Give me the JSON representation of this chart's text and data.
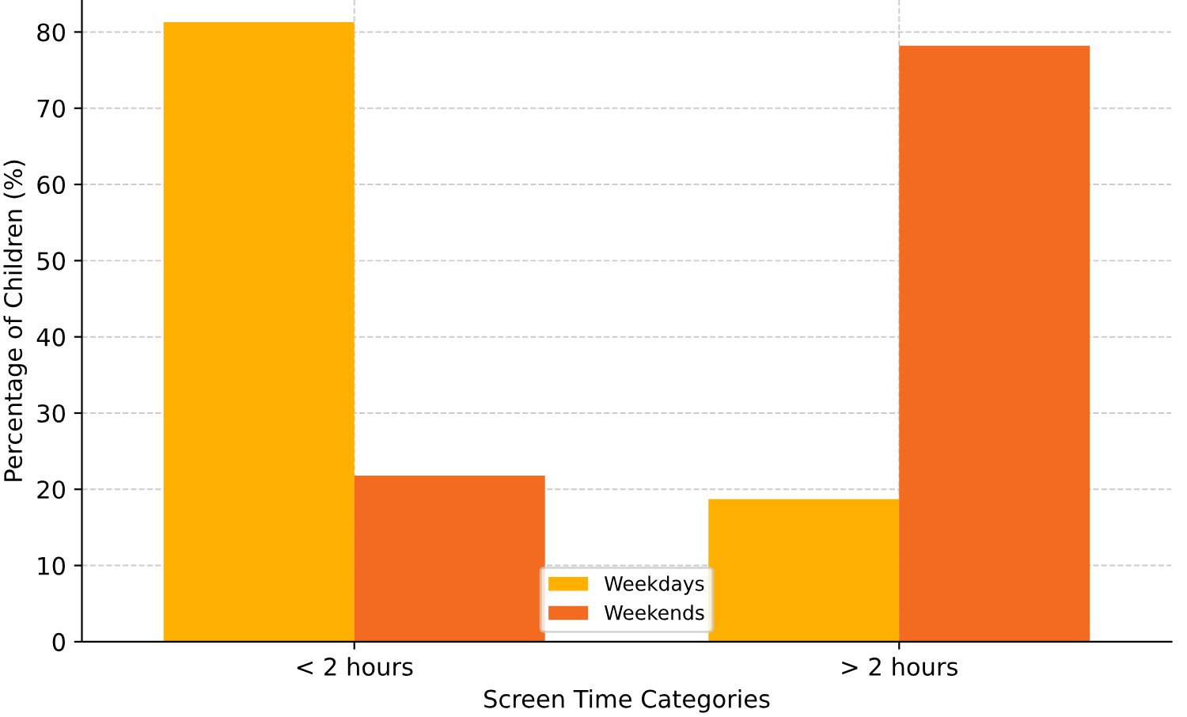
{
  "chart_data": {
    "type": "bar",
    "xlabel": "Screen Time Categories",
    "ylabel": "Percentage of Children (%)",
    "categories": [
      "< 2 hours",
      "> 2 hours"
    ],
    "series": [
      {
        "name": "Weekdays",
        "color": "#ffb000",
        "values": [
          81.3,
          18.7
        ]
      },
      {
        "name": "Weekends",
        "color": "#f26b21",
        "values": [
          21.8,
          78.2
        ]
      }
    ],
    "ylim": [
      0,
      84.2
    ],
    "yticks": [
      0,
      10,
      20,
      30,
      40,
      50,
      60,
      70,
      80
    ],
    "grid": true,
    "legend": "bottom"
  }
}
